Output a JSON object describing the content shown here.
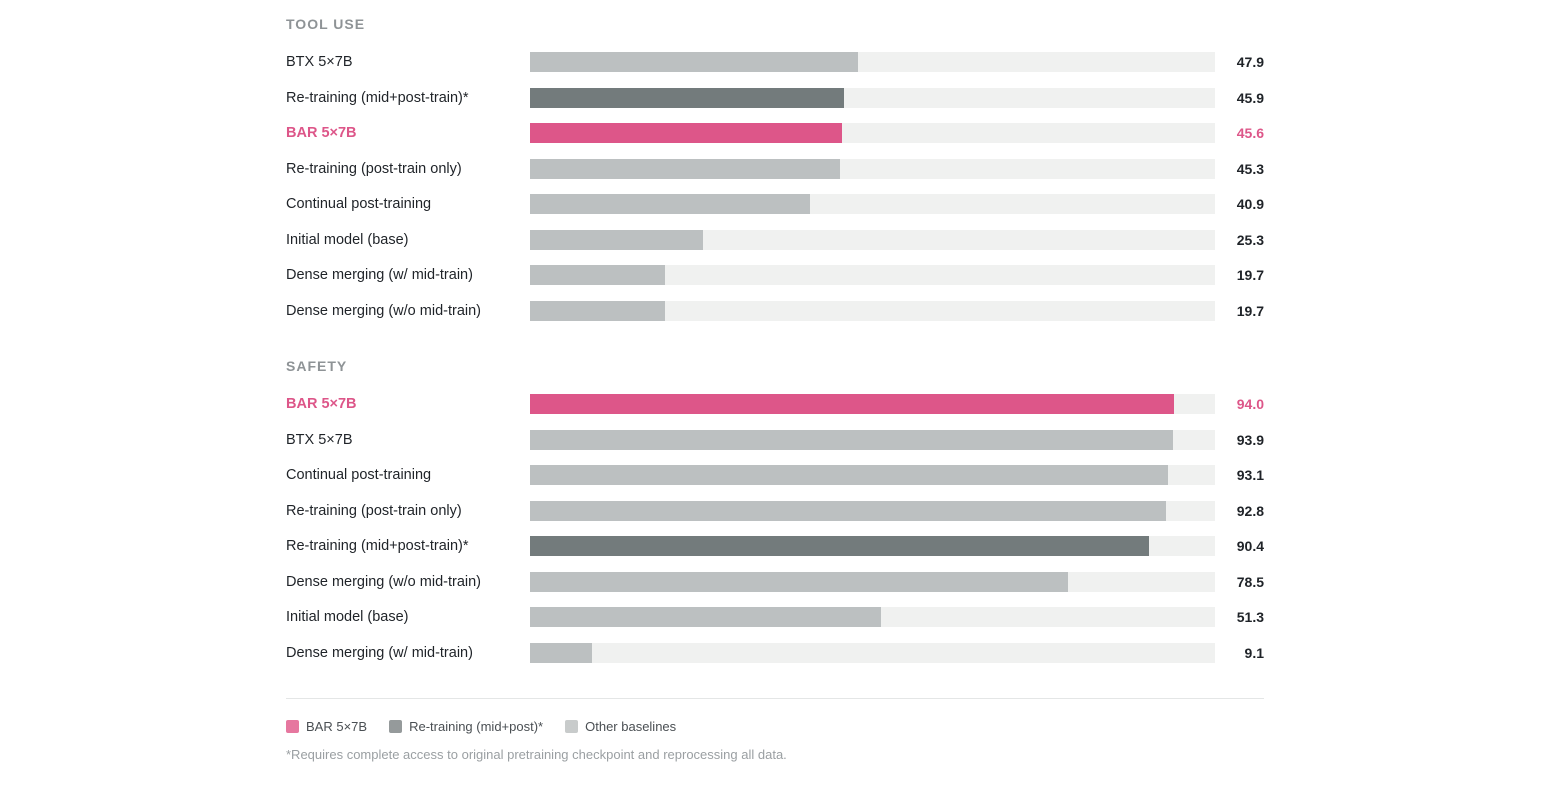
{
  "colors": {
    "highlight": "#dd5689",
    "retraining": "#737b7c",
    "baseline": "#bcc0c1",
    "track": "#f0f1f0"
  },
  "chart_data": [
    {
      "type": "bar",
      "orientation": "horizontal",
      "title": "TOOL USE",
      "xlim": [
        0,
        100
      ],
      "grid": false,
      "categories": [
        "BTX 5×7B",
        "Re-training (mid+post-train)*",
        "BAR 5×7B",
        "Re-training (post-train only)",
        "Continual post-training",
        "Initial model (base)",
        "Dense merging (w/ mid-train)",
        "Dense merging (w/o mid-train)"
      ],
      "values": [
        47.9,
        45.9,
        45.6,
        45.3,
        40.9,
        25.3,
        19.7,
        19.7
      ],
      "value_labels": [
        "47.9",
        "45.9",
        "45.6",
        "45.3",
        "40.9",
        "25.3",
        "19.7",
        "19.7"
      ],
      "groups": [
        "other",
        "retraining",
        "bar",
        "other",
        "other",
        "other",
        "other",
        "other"
      ]
    },
    {
      "type": "bar",
      "orientation": "horizontal",
      "title": "SAFETY",
      "xlim": [
        0,
        100
      ],
      "grid": false,
      "categories": [
        "BAR 5×7B",
        "BTX 5×7B",
        "Continual post-training",
        "Re-training (post-train only)",
        "Re-training (mid+post-train)*",
        "Dense merging (w/o mid-train)",
        "Initial model (base)",
        "Dense merging (w/ mid-train)"
      ],
      "values": [
        94.0,
        93.9,
        93.1,
        92.8,
        90.4,
        78.5,
        51.3,
        9.1
      ],
      "value_labels": [
        "94.0",
        "93.9",
        "93.1",
        "92.8",
        "90.4",
        "78.5",
        "51.3",
        "9.1"
      ],
      "groups": [
        "bar",
        "other",
        "other",
        "other",
        "retraining",
        "other",
        "other",
        "other"
      ]
    }
  ],
  "legend": [
    {
      "label": "BAR 5×7B",
      "group": "bar",
      "color": "#e6779f"
    },
    {
      "label": "Re-training (mid+post)*",
      "group": "retraining",
      "color": "#959a9b"
    },
    {
      "label": "Other baselines",
      "group": "other",
      "color": "#c8cbcb"
    }
  ],
  "footnote": "*Requires complete access to original pretraining checkpoint and reprocessing all data."
}
